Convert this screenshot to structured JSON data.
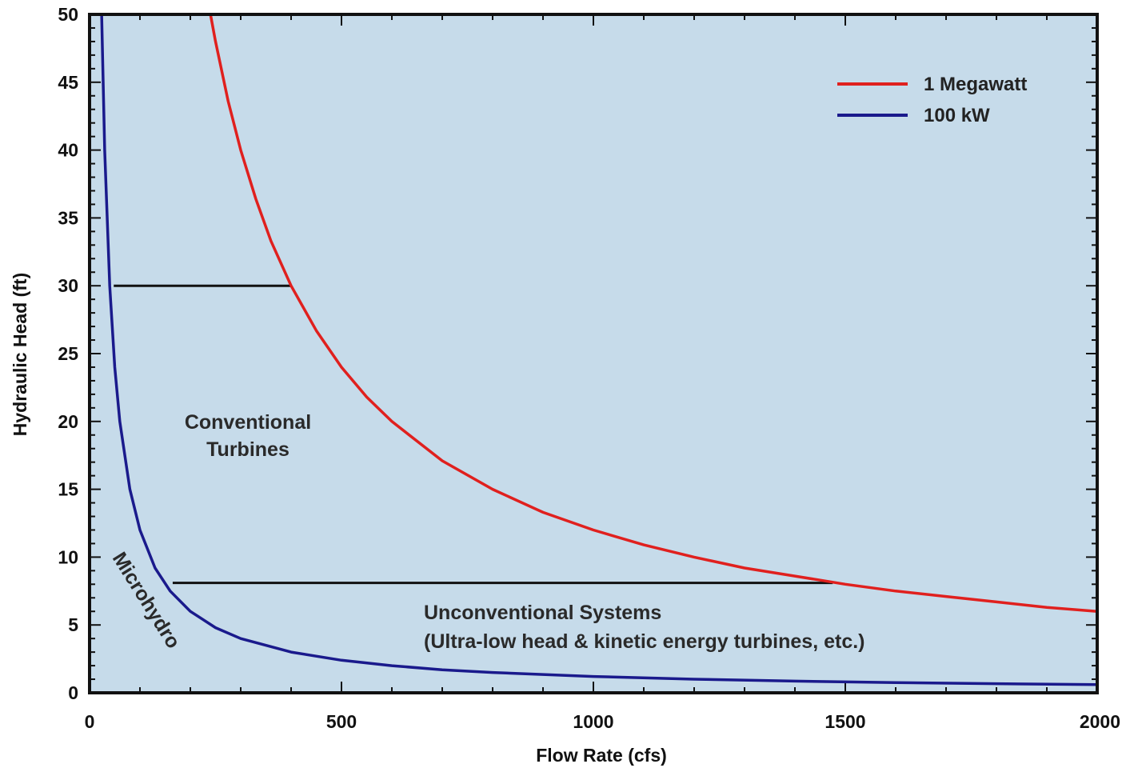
{
  "chart_data": {
    "type": "line",
    "xlabel": "Flow Rate (cfs)",
    "ylabel": "Hydraulic Head (ft)",
    "xlim": [
      0,
      2000
    ],
    "ylim": [
      0,
      50
    ],
    "x_ticks": [
      0,
      500,
      1000,
      1500,
      2000
    ],
    "y_ticks": [
      0,
      5,
      10,
      15,
      20,
      25,
      30,
      35,
      40,
      45,
      50
    ],
    "grid": false,
    "legend_position": "top-right",
    "background_color": "#c6dbea",
    "series": [
      {
        "name": "1 Megawatt",
        "color": "#e0201e",
        "x": [
          240,
          250,
          275,
          300,
          330,
          360,
          400,
          450,
          500,
          550,
          600,
          700,
          800,
          900,
          1000,
          1100,
          1200,
          1300,
          1400,
          1500,
          1600,
          1700,
          1800,
          1900,
          2000
        ],
        "y": [
          50,
          48,
          43.6,
          40,
          36.4,
          33.3,
          30,
          26.7,
          24,
          21.8,
          20,
          17.1,
          15,
          13.3,
          12,
          10.9,
          10,
          9.2,
          8.6,
          8,
          7.5,
          7.1,
          6.7,
          6.3,
          6
        ]
      },
      {
        "name": "100 kW",
        "color": "#1a1a8c",
        "x": [
          24,
          30,
          40,
          50,
          60,
          80,
          100,
          130,
          160,
          200,
          250,
          300,
          400,
          500,
          600,
          700,
          800,
          1000,
          1200,
          1400,
          1600,
          1800,
          2000
        ],
        "y": [
          50,
          40,
          30,
          24,
          20,
          15,
          12,
          9.2,
          7.5,
          6,
          4.8,
          4,
          3,
          2.4,
          2,
          1.7,
          1.5,
          1.2,
          1,
          0.86,
          0.75,
          0.67,
          0.6
        ]
      }
    ],
    "annotation_lines": [
      {
        "x": [
          48,
          400
        ],
        "y": [
          30,
          30
        ],
        "color": "#111111"
      },
      {
        "x": [
          165,
          1475
        ],
        "y": [
          8.1,
          8.1
        ],
        "color": "#111111"
      }
    ],
    "annotations": {
      "conventional": [
        "Conventional",
        "Turbines"
      ],
      "unconventional": [
        "Unconventional Systems",
        "(Ultra-low head & kinetic energy turbines, etc.)"
      ],
      "microhydro": "Microhydro"
    }
  }
}
